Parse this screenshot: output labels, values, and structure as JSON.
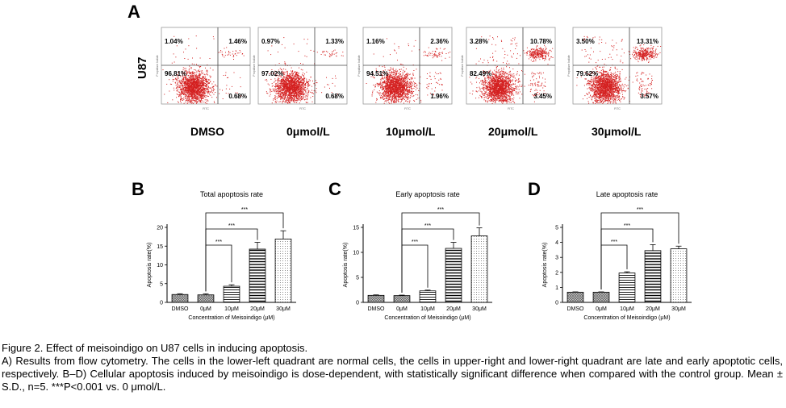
{
  "panel_a": {
    "letter": "A",
    "row_label": "U87",
    "axis_y_small": "Propidium Iodide",
    "axis_x_small": "FITC",
    "plots": [
      {
        "condition": "DMSO",
        "ul": "1.04%",
        "ur": "1.46%",
        "ll": "96.81%",
        "lr": "0.68%"
      },
      {
        "condition": "0μmol/L",
        "ul": "0.97%",
        "ur": "1.33%",
        "ll": "97.02%",
        "lr": "0.68%"
      },
      {
        "condition": "10μmol/L",
        "ul": "1.16%",
        "ur": "2.36%",
        "ll": "94.51%",
        "lr": "1.96%"
      },
      {
        "condition": "20μmol/L",
        "ul": "3.28%",
        "ur": "10.78%",
        "ll": "82.49%",
        "lr": "3.45%"
      },
      {
        "condition": "30μmol/L",
        "ul": "3.50%",
        "ur": "13.31%",
        "ll": "79.62%",
        "lr": "3.57%"
      }
    ]
  },
  "chart_data": [
    {
      "letter": "B",
      "type": "bar",
      "title": "Total apoptosis rate",
      "xlabel": "Concentration of Meisoindigo (μM)",
      "ylabel": "Apoptosis rate(%)",
      "categories": [
        "DMSO",
        "0μM",
        "10μM",
        "20μM",
        "30μM"
      ],
      "values": [
        2.1,
        2.0,
        4.3,
        14.2,
        16.9
      ],
      "errors": [
        0.2,
        0.3,
        0.4,
        1.8,
        2.2
      ],
      "ylim": [
        0,
        20
      ],
      "yticks": [
        0,
        5,
        10,
        15,
        20
      ],
      "significance": [
        {
          "from": 1,
          "to": 2,
          "label": "***"
        },
        {
          "from": 1,
          "to": 3,
          "label": "***"
        },
        {
          "from": 1,
          "to": 4,
          "label": "***"
        }
      ]
    },
    {
      "letter": "C",
      "type": "bar",
      "title": "Early apoptosis rate",
      "xlabel": "Concentration of Meisoindigo (μM)",
      "ylabel": "Apoptosis rate(%)",
      "categories": [
        "DMSO",
        "0μM",
        "10μM",
        "20μM",
        "30μM"
      ],
      "values": [
        1.4,
        1.35,
        2.3,
        10.8,
        13.3
      ],
      "errors": [
        0.1,
        0.1,
        0.15,
        1.2,
        1.6
      ],
      "ylim": [
        0,
        15
      ],
      "yticks": [
        0,
        5,
        10,
        15
      ],
      "significance": [
        {
          "from": 1,
          "to": 2,
          "label": "***"
        },
        {
          "from": 1,
          "to": 3,
          "label": "***"
        },
        {
          "from": 1,
          "to": 4,
          "label": "***"
        }
      ]
    },
    {
      "letter": "D",
      "type": "bar",
      "title": "Late apoptosis rate",
      "xlabel": "Concentration of Meisoindigo (μM)",
      "ylabel": "Apoptosis rate(%)",
      "categories": [
        "DMSO",
        "0μM",
        "10μM",
        "20μM",
        "30μM"
      ],
      "values": [
        0.68,
        0.68,
        1.96,
        3.45,
        3.57
      ],
      "errors": [
        0.02,
        0.02,
        0.08,
        0.4,
        0.18
      ],
      "ylim": [
        0,
        5
      ],
      "yticks": [
        0,
        1,
        2,
        3,
        4,
        5
      ],
      "significance": [
        {
          "from": 1,
          "to": 2,
          "label": "***"
        },
        {
          "from": 1,
          "to": 3,
          "label": "***"
        },
        {
          "from": 1,
          "to": 4,
          "label": "***"
        }
      ]
    }
  ],
  "caption": {
    "title": "Figure 2. Effect of meisoindigo on U87 cells in inducing apoptosis.",
    "body": "A) Results from flow cytometry. The cells in the lower-left quadrant are normal cells, the cells in upper-right and lower-right quadrant are late and early apoptotic cells, respectively. B–D) Cellular apoptosis induced by meisoindigo is dose-dependent, with statistically significant difference when compared with the control group. Mean ± S.D., n=5. ***P<0.001 vs. 0 μmol/L."
  },
  "colors": {
    "dots": "#d42020",
    "quadrant_line": "#444444",
    "bar_edge": "#000000"
  }
}
